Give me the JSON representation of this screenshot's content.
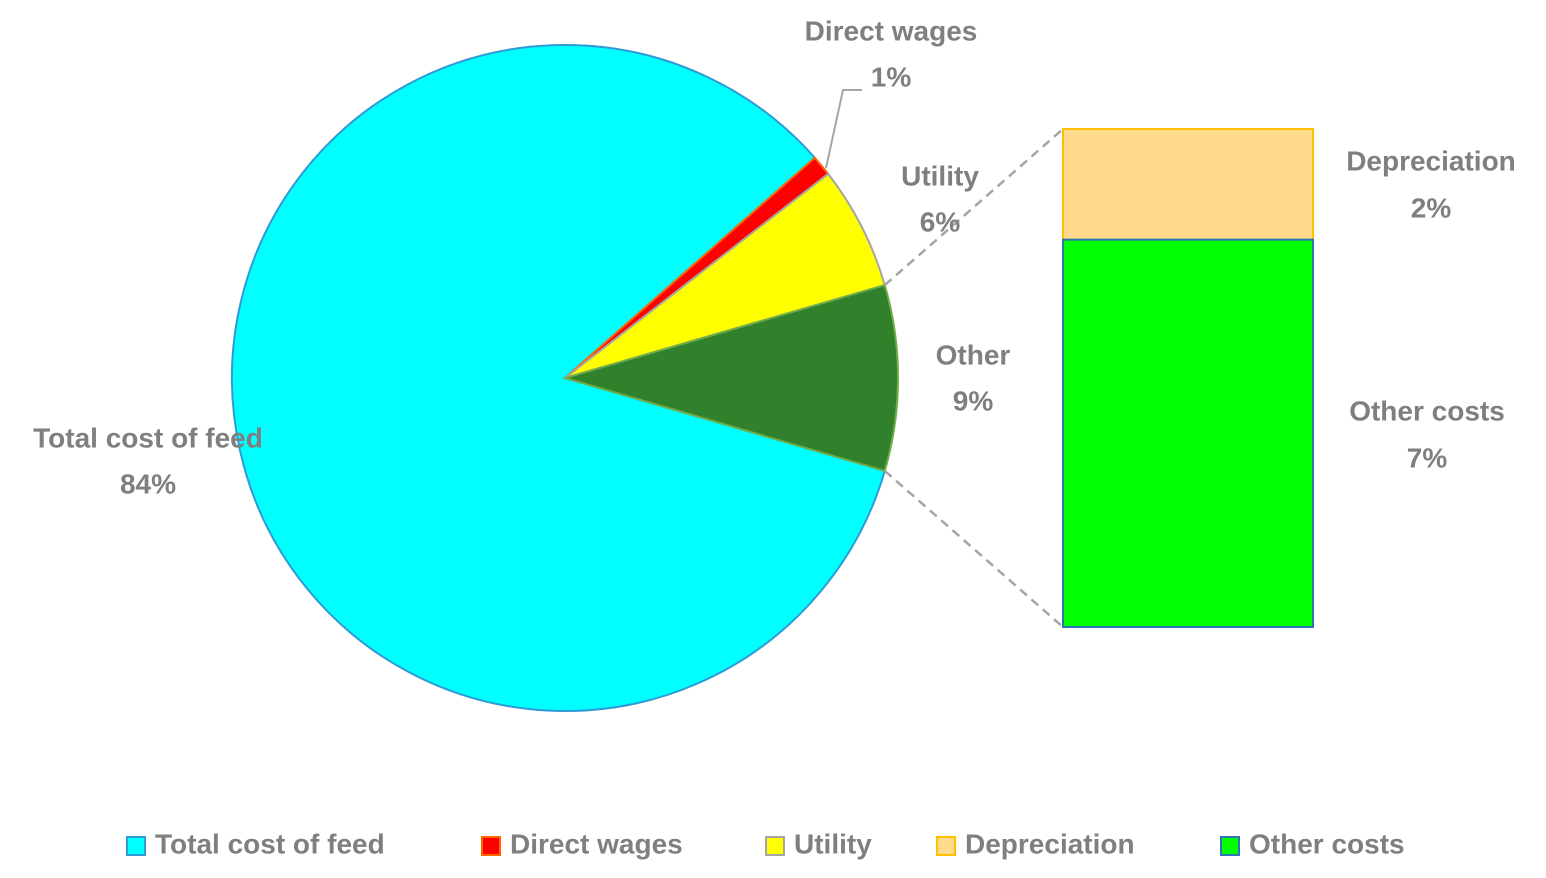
{
  "chart_data": {
    "type": "bar-of-pie",
    "slices": {
      "categories": [
        "Total cost of feed",
        "Direct wages",
        "Utility",
        "Other"
      ],
      "values": [
        84,
        1,
        6,
        9
      ],
      "value_labels": [
        "84%",
        "1%",
        "6%",
        "9%"
      ],
      "colors": [
        "#00ffff",
        "#ff0000",
        "#ffff00",
        "#31812c"
      ],
      "edge_colors": [
        "#2e9bd6",
        "#ff6600",
        "#a5a5a5",
        "#70ad47"
      ]
    },
    "bar": {
      "categories": [
        "Depreciation",
        "Other costs"
      ],
      "values": [
        2,
        7
      ],
      "value_labels": [
        "2%",
        "7%"
      ],
      "colors": [
        "#ffd98c",
        "#00ff00"
      ],
      "edge_colors": [
        "#ffc000",
        "#2e75b6"
      ]
    },
    "legend": "bottom"
  }
}
